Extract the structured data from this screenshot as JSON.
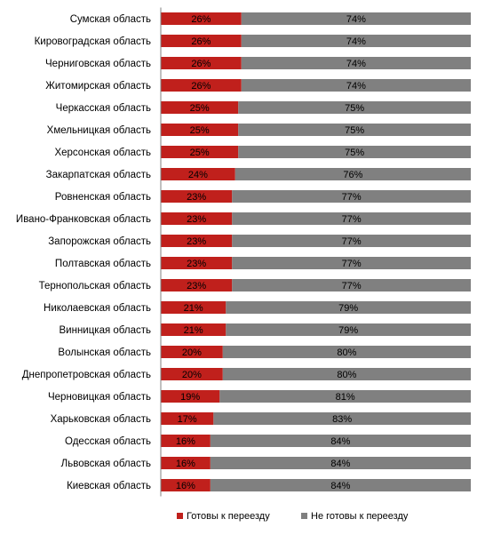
{
  "chart_data": {
    "type": "bar",
    "orientation": "horizontal",
    "stacked": "percent",
    "categories": [
      "Сумская область",
      "Кировоградская область",
      "Черниговская область",
      "Житомирская область",
      "Черкасская область",
      "Хмельницкая область",
      "Херсонская область",
      "Закарпатская область",
      "Ровненская область",
      "Ивано-Франковская область",
      "Запорожская область",
      "Полтавская область",
      "Тернопольская область",
      "Николаевская область",
      "Винницкая область",
      "Волынская область",
      "Днепропетровская  область",
      "Черновицкая  область",
      "Харьковская  область",
      "Одесская область",
      "Львовская область",
      "Киевская область"
    ],
    "series": [
      {
        "name": "Готовы к переезду",
        "color": "#c0201c",
        "values": [
          26,
          26,
          26,
          26,
          25,
          25,
          25,
          24,
          23,
          23,
          23,
          23,
          23,
          21,
          21,
          20,
          20,
          19,
          17,
          16,
          16,
          16
        ],
        "labels": [
          "26%",
          "26%",
          "26%",
          "26%",
          "25%",
          "25%",
          "25%",
          "24%",
          "23%",
          "23%",
          "23%",
          "23%",
          "23%",
          "21%",
          "21%",
          "20%",
          "20%",
          "19%",
          "17%",
          "16%",
          "16%",
          "16%"
        ]
      },
      {
        "name": "Не готовы к переезду",
        "color": "#808080",
        "values": [
          74,
          74,
          74,
          74,
          75,
          75,
          75,
          76,
          77,
          77,
          77,
          77,
          77,
          79,
          79,
          80,
          80,
          81,
          83,
          84,
          84,
          84
        ],
        "labels": [
          "74%",
          "74%",
          "74%",
          "74%",
          "75%",
          "75%",
          "75%",
          "76%",
          "77%",
          "77%",
          "77%",
          "77%",
          "77%",
          "79%",
          "79%",
          "80%",
          "80%",
          "81%",
          "83%",
          "84%",
          "84%",
          "84%"
        ]
      }
    ],
    "xlim": [
      0,
      100
    ],
    "grid": false,
    "legend_position": "bottom",
    "axis_color": "#808080"
  }
}
